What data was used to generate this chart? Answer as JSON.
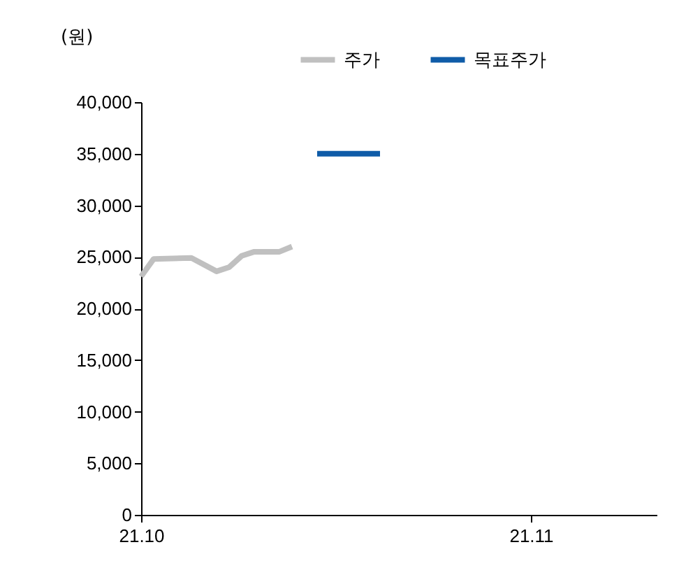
{
  "chart_data": {
    "type": "line",
    "ylabel": "(원)",
    "legend": "top right",
    "grid": false,
    "xlim": [
      "--10-01",
      "--11-11"
    ],
    "xticks": [
      {
        "value": "--10-01",
        "label": "21.10"
      },
      {
        "value": "--11-01",
        "label": "21.11"
      }
    ],
    "ylim": [
      0,
      40000
    ],
    "yticks": [
      0,
      {
        "value": 5000,
        "label": "5,000"
      },
      {
        "value": 10000,
        "label": "10,000"
      },
      {
        "value": 15000,
        "label": "15,000"
      },
      {
        "value": 20000,
        "label": "20,000"
      },
      {
        "value": 25000,
        "label": "25,000"
      },
      {
        "value": 30000,
        "label": "30,000"
      },
      {
        "value": 35000,
        "label": "35,000"
      },
      {
        "value": 40000,
        "label": "40,000"
      }
    ],
    "series": [
      {
        "name": "주가",
        "color": "#c0c0c0",
        "x": [
          "--10-01",
          "--10-02",
          "--10-05",
          "--10-07",
          "--10-08",
          "--10-09",
          "--10-10",
          "--10-12",
          "--10-13"
        ],
        "values": [
          23100,
          24800,
          24900,
          23600,
          24000,
          25100,
          25500,
          25500,
          26000
        ]
      },
      {
        "name": "목표주가",
        "color": "#0f5ca8",
        "x": [
          "--10-15",
          "--10-20"
        ],
        "values": [
          35000,
          35000
        ]
      }
    ]
  }
}
